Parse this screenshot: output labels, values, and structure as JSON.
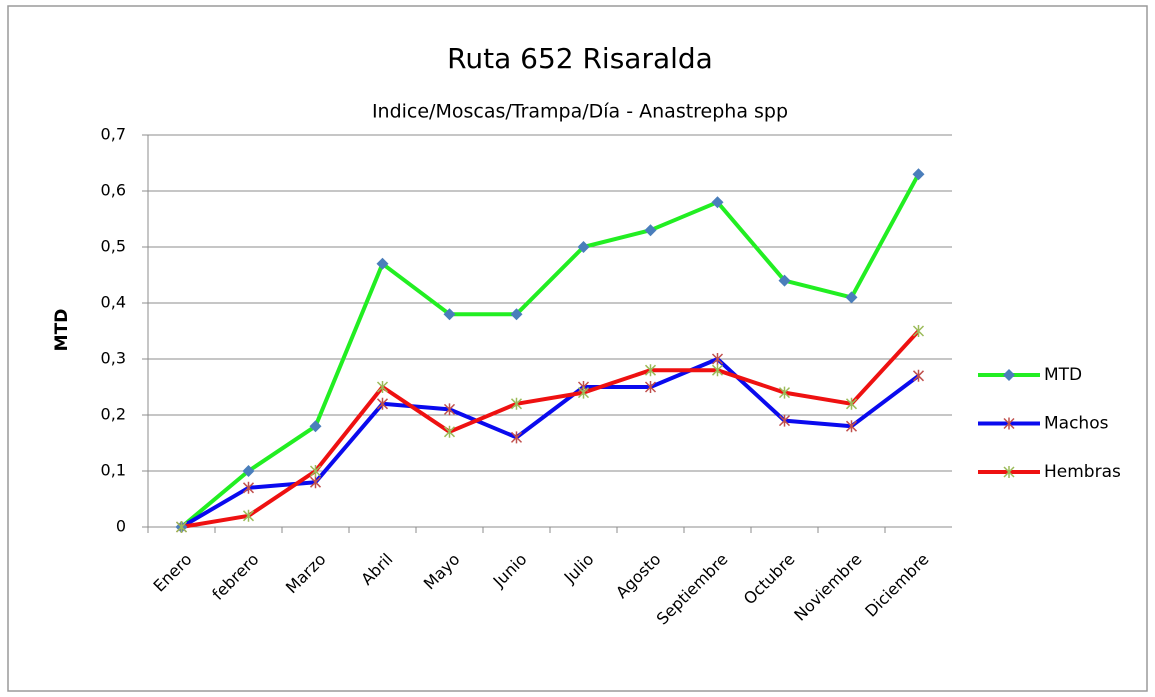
{
  "chart_data": {
    "type": "line",
    "title": "Ruta 652 Risaralda",
    "subtitle": "Indice/Moscas/Trampa/Día - Anastrepha spp",
    "y_label": "MTD",
    "categories": [
      "Enero",
      "febrero",
      "Marzo",
      "Abril",
      "Mayo",
      "Junio",
      "Julio",
      "Agosto",
      "Septiembre",
      "Octubre",
      "Noviembre",
      "Diciembre"
    ],
    "series": [
      {
        "name": "MTD",
        "color": "#22ee22",
        "marker": "diamond",
        "marker_color": "#4a7ebb",
        "values": [
          0,
          0.1,
          0.18,
          0.47,
          0.38,
          0.38,
          0.5,
          0.53,
          0.58,
          0.44,
          0.41,
          0.63
        ]
      },
      {
        "name": "Machos",
        "color": "#0a0aee",
        "marker": "cross",
        "marker_color": "#c0504d",
        "values": [
          0,
          0.07,
          0.08,
          0.22,
          0.21,
          0.16,
          0.25,
          0.25,
          0.3,
          0.19,
          0.18,
          0.27
        ]
      },
      {
        "name": "Hembras",
        "color": "#ee1111",
        "marker": "cross",
        "marker_color": "#9bbb59",
        "values": [
          0,
          0.02,
          0.1,
          0.25,
          0.17,
          0.22,
          0.24,
          0.28,
          0.28,
          0.24,
          0.22,
          0.35
        ]
      }
    ],
    "ylim": [
      0,
      0.7
    ],
    "yticks": [
      0,
      {
        "value": 0.1,
        "label": "0,1"
      },
      {
        "value": 0.2,
        "label": "0,2"
      },
      {
        "value": 0.3,
        "label": "0,3"
      },
      {
        "value": 0.4,
        "label": "0,4"
      },
      {
        "value": 0.5,
        "label": "0,5"
      },
      {
        "value": 0.6,
        "label": "0,6"
      },
      {
        "value": 0.7,
        "label": "0,7"
      }
    ],
    "grid": true,
    "legend": "right"
  }
}
